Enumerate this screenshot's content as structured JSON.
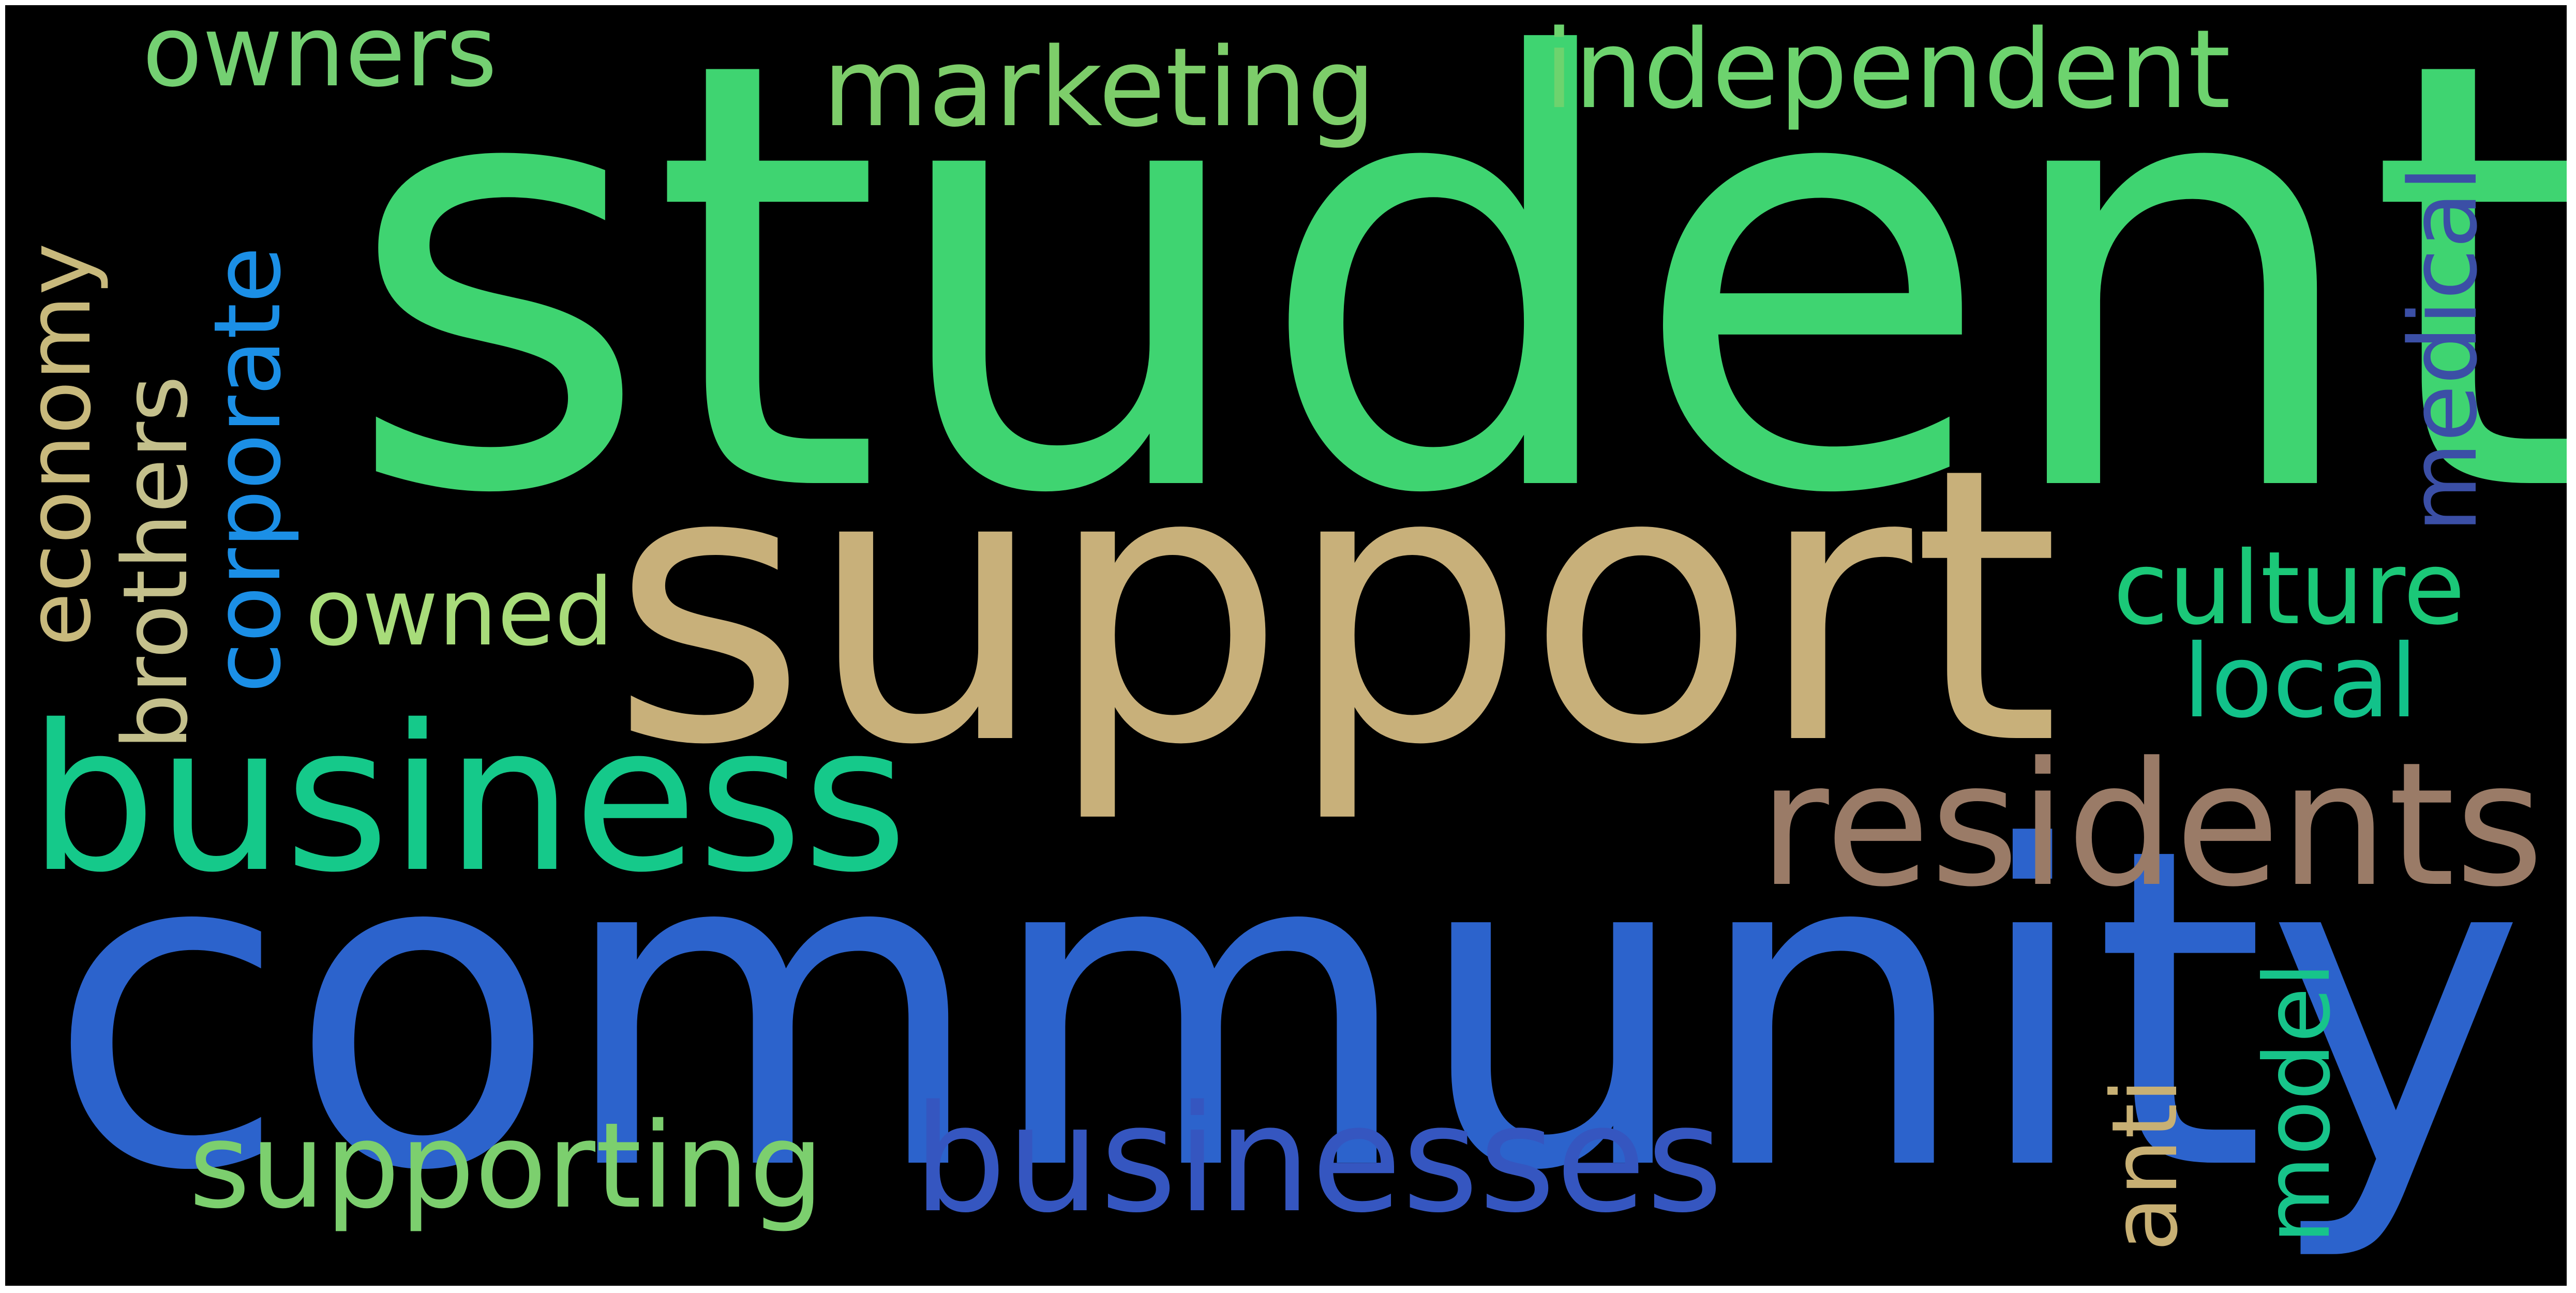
{
  "words": [
    {
      "key": "student",
      "text": "student",
      "color": "#3fd471"
    },
    {
      "key": "support",
      "text": "support",
      "color": "#c8b07a"
    },
    {
      "key": "community",
      "text": "community",
      "color": "#2c63cc"
    },
    {
      "key": "business",
      "text": "business",
      "color": "#15c98a"
    },
    {
      "key": "residents",
      "text": "residents",
      "color": "#9a7b67"
    },
    {
      "key": "businesses",
      "text": "businesses",
      "color": "#3556c0"
    },
    {
      "key": "supporting",
      "text": "supporting",
      "color": "#7ccf6e"
    },
    {
      "key": "marketing",
      "text": "marketing",
      "color": "#7dcd6a"
    },
    {
      "key": "independent",
      "text": "independent",
      "color": "#6dd36e"
    },
    {
      "key": "owners",
      "text": "owners",
      "color": "#74d072"
    },
    {
      "key": "owned",
      "text": "owned",
      "color": "#a8dc7a"
    },
    {
      "key": "culture",
      "text": "culture",
      "color": "#1bc878"
    },
    {
      "key": "local",
      "text": "local",
      "color": "#12c28a"
    },
    {
      "key": "medical",
      "text": "medical",
      "color": "#3b4fa6"
    },
    {
      "key": "corporate",
      "text": "corporate",
      "color": "#1b8fe6"
    },
    {
      "key": "brothers",
      "text": "brothers",
      "color": "#c4c08c"
    },
    {
      "key": "economy",
      "text": "economy",
      "color": "#c8b97c"
    },
    {
      "key": "anti",
      "text": "anti",
      "color": "#c8b074"
    },
    {
      "key": "model",
      "text": "model",
      "color": "#17c48a"
    }
  ]
}
